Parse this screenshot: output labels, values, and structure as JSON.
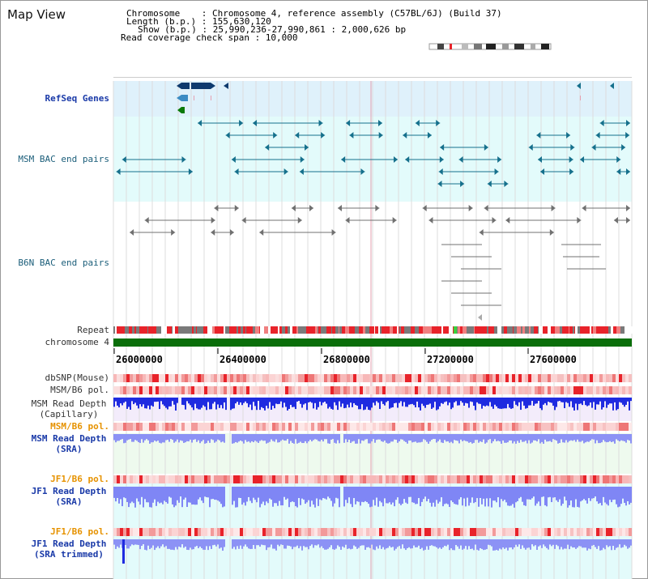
{
  "title": "Map View",
  "info": {
    "chromosome": "Chromosome    : Chromosome 4, reference assembly (C57BL/6J) (Build 37)",
    "length": "Length (b.p.) : 155,630,120",
    "show": "Show (b.p.) : 25,990,236-27,990,861 : 2,000,626 bp",
    "coverage": "Read coverage check span : 10,000"
  },
  "tracks": {
    "refseq": "RefSeq Genes",
    "msm_bac": "MSM BAC end pairs",
    "b6n_bac": "B6N BAC end pairs",
    "repeat": "Repeat",
    "chromosome": "chromosome 4",
    "dbsnp": "dbSNP(Mouse)",
    "msm_b6_pol": "MSM/B6 pol.",
    "msm_read_depth_cap_1": "MSM Read Depth",
    "msm_read_depth_cap_2": "(Capillary)",
    "msm_b6_pol_2": "MSM/B6 pol.",
    "msm_read_depth_sra_1": "MSM Read Depth",
    "msm_read_depth_sra_2": "(SRA)",
    "jf1_b6_pol": "JF1/B6 pol.",
    "jf1_read_depth_1": "JF1 Read Depth",
    "jf1_read_depth_2": "(SRA)",
    "jf1_b6_pol_2": "JF1/B6 pol.",
    "jf1_trim_1": "JF1 Read Depth",
    "jf1_trim_2": "(SRA trimmed)"
  },
  "axis": {
    "ticks": [
      "26000000",
      "26400000",
      "26800000",
      "27200000",
      "27600000"
    ]
  },
  "colors": {
    "refseq_bg": "#dff1fb",
    "msm_bac_bg": "#e3fbfb",
    "track_red": "#e8232a",
    "track_pink": "#f7c2c2",
    "depth_blue": "#1f2be0",
    "sra_blue": "#7f86f5",
    "chromosome_green": "#0a6e0a",
    "gene_blue": "#0e3a6e",
    "bac_teal": "#15708c",
    "b6n_gray": "#707070",
    "highlight_pink": "#e6a0b0"
  }
}
